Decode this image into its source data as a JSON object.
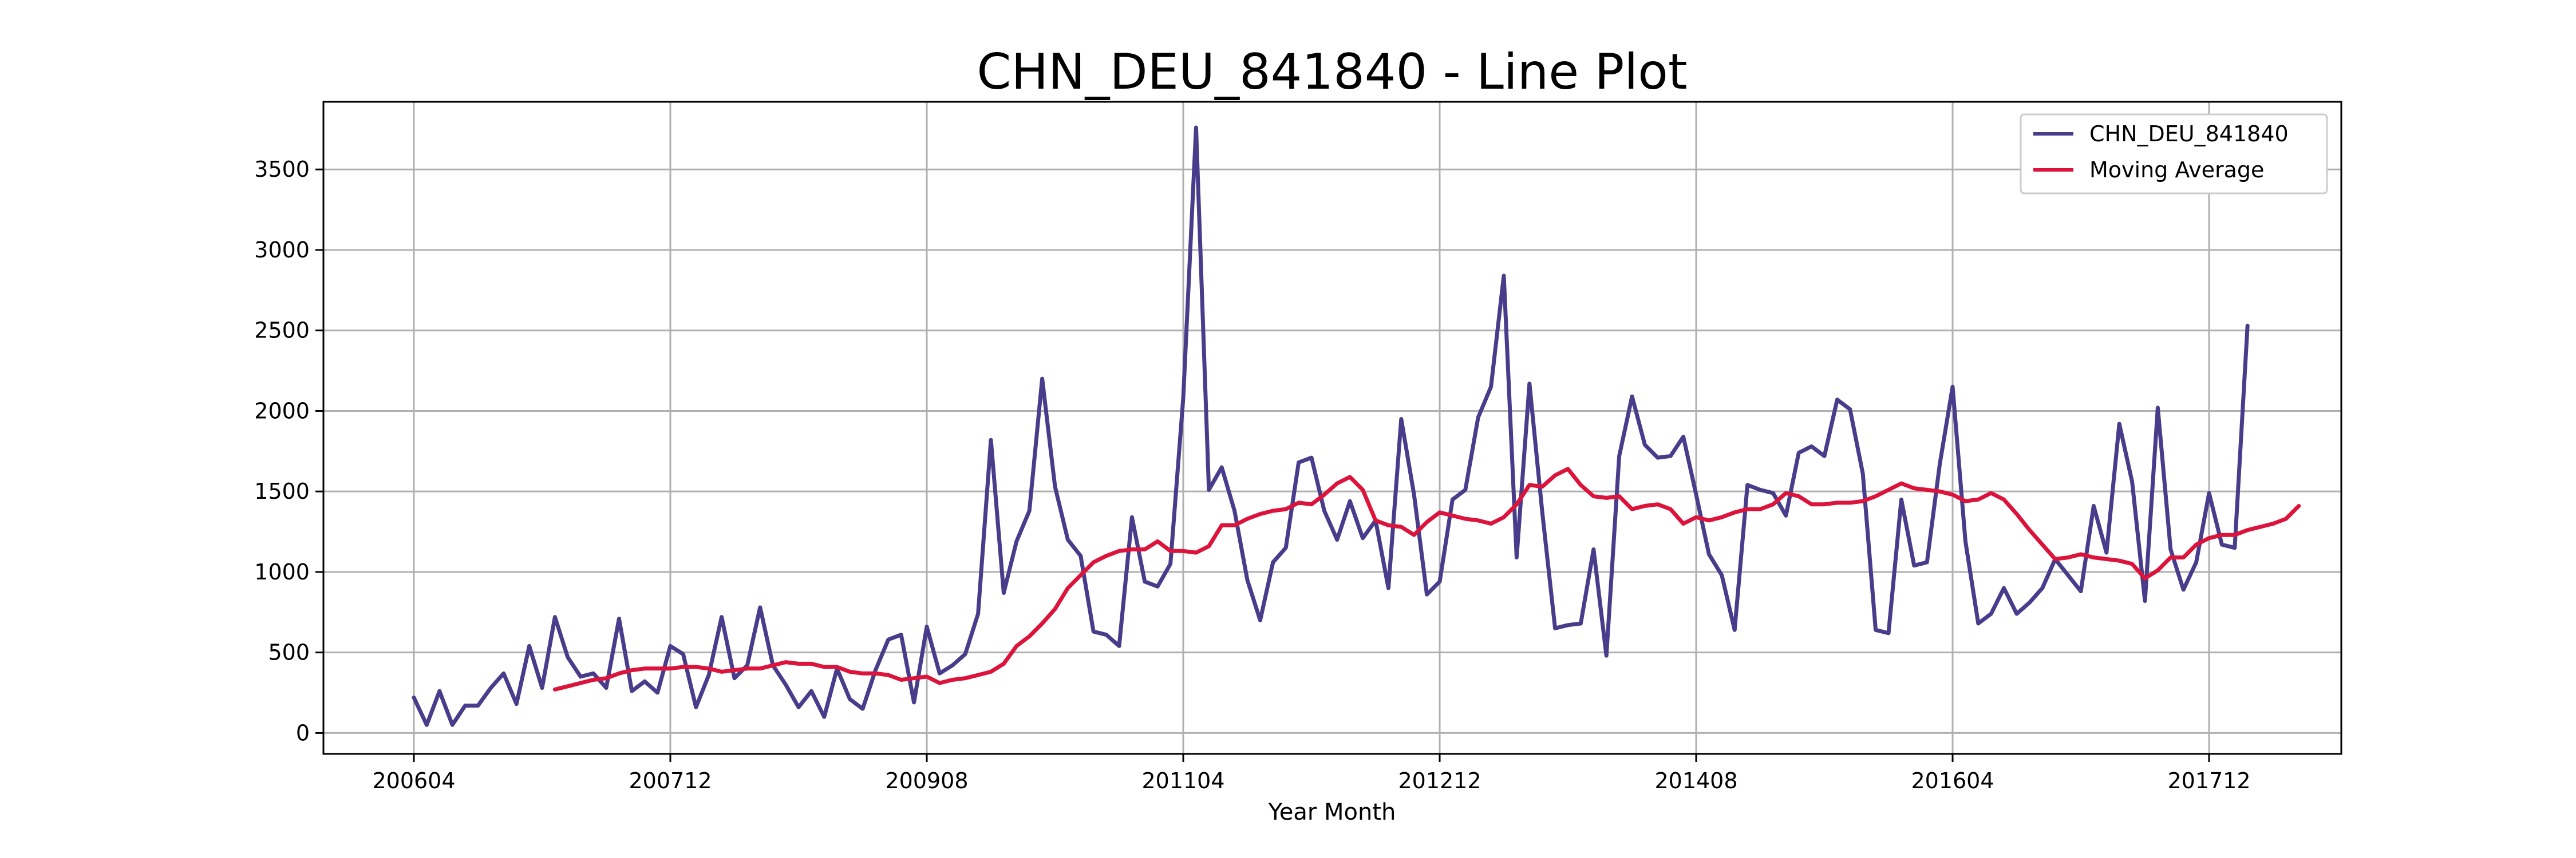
{
  "chart_data": {
    "type": "line",
    "title": "CHN_DEU_841840 - Line Plot",
    "xlabel": "Year Month",
    "ylabel": "",
    "ylim": [
      -130,
      3920
    ],
    "yticks": [
      0,
      500,
      1000,
      1500,
      2000,
      2500,
      3000,
      3500
    ],
    "x_start": "200604",
    "xticks": [
      "200604",
      "200712",
      "200908",
      "201104",
      "201212",
      "201408",
      "201604",
      "201712"
    ],
    "grid": true,
    "legend_position": "top-right",
    "series": [
      {
        "name": "CHN_DEU_841840",
        "color": "#483d8b",
        "values": [
          220,
          50,
          260,
          50,
          170,
          170,
          280,
          370,
          180,
          540,
          280,
          720,
          470,
          350,
          370,
          280,
          710,
          260,
          320,
          250,
          540,
          490,
          160,
          360,
          720,
          340,
          420,
          780,
          420,
          300,
          160,
          260,
          100,
          400,
          210,
          150,
          390,
          580,
          610,
          190,
          660,
          370,
          420,
          490,
          740,
          1820,
          870,
          1190,
          1380,
          2200,
          1530,
          1200,
          1100,
          630,
          610,
          540,
          1340,
          940,
          910,
          1050,
          2080,
          3760,
          1510,
          1650,
          1380,
          950,
          700,
          1060,
          1150,
          1680,
          1710,
          1380,
          1200,
          1440,
          1210,
          1320,
          900,
          1950,
          1480,
          860,
          940,
          1450,
          1510,
          1960,
          2150,
          2840,
          1090,
          2170,
          1370,
          650,
          670,
          680,
          1140,
          480,
          1720,
          2090,
          1790,
          1710,
          1720,
          1840,
          1480,
          1110,
          980,
          640,
          1540,
          1510,
          1490,
          1350,
          1740,
          1780,
          1720,
          2070,
          2010,
          1610,
          640,
          620,
          1450,
          1040,
          1060,
          1670,
          2150,
          1190,
          680,
          740,
          900,
          740,
          810,
          900,
          1080,
          980,
          880,
          1410,
          1120,
          1920,
          1560,
          820,
          2020,
          1140,
          890,
          1060,
          1490,
          1170,
          1150,
          2530
        ]
      },
      {
        "name": "Moving Average",
        "color": "#dc143c",
        "start_index": 11,
        "values": [
          270,
          290,
          310,
          330,
          340,
          370,
          390,
          400,
          400,
          400,
          410,
          410,
          400,
          380,
          390,
          400,
          400,
          420,
          440,
          430,
          430,
          410,
          410,
          380,
          370,
          370,
          360,
          330,
          340,
          350,
          310,
          330,
          340,
          360,
          380,
          430,
          540,
          600,
          680,
          770,
          900,
          980,
          1060,
          1100,
          1130,
          1140,
          1140,
          1190,
          1130,
          1130,
          1120,
          1160,
          1290,
          1290,
          1330,
          1360,
          1380,
          1390,
          1430,
          1420,
          1480,
          1550,
          1590,
          1510,
          1320,
          1290,
          1280,
          1230,
          1310,
          1370,
          1350,
          1330,
          1320,
          1300,
          1340,
          1420,
          1540,
          1530,
          1600,
          1640,
          1540,
          1470,
          1460,
          1470,
          1390,
          1410,
          1420,
          1390,
          1300,
          1340,
          1320,
          1340,
          1370,
          1390,
          1390,
          1420,
          1490,
          1470,
          1420,
          1420,
          1430,
          1430,
          1440,
          1470,
          1510,
          1550,
          1520,
          1510,
          1500,
          1480,
          1440,
          1450,
          1490,
          1450,
          1360,
          1260,
          1170,
          1080,
          1090,
          1110,
          1090,
          1080,
          1070,
          1050,
          960,
          1010,
          1090,
          1090,
          1170,
          1210,
          1230,
          1230,
          1260,
          1280,
          1300,
          1330,
          1410
        ]
      }
    ]
  }
}
